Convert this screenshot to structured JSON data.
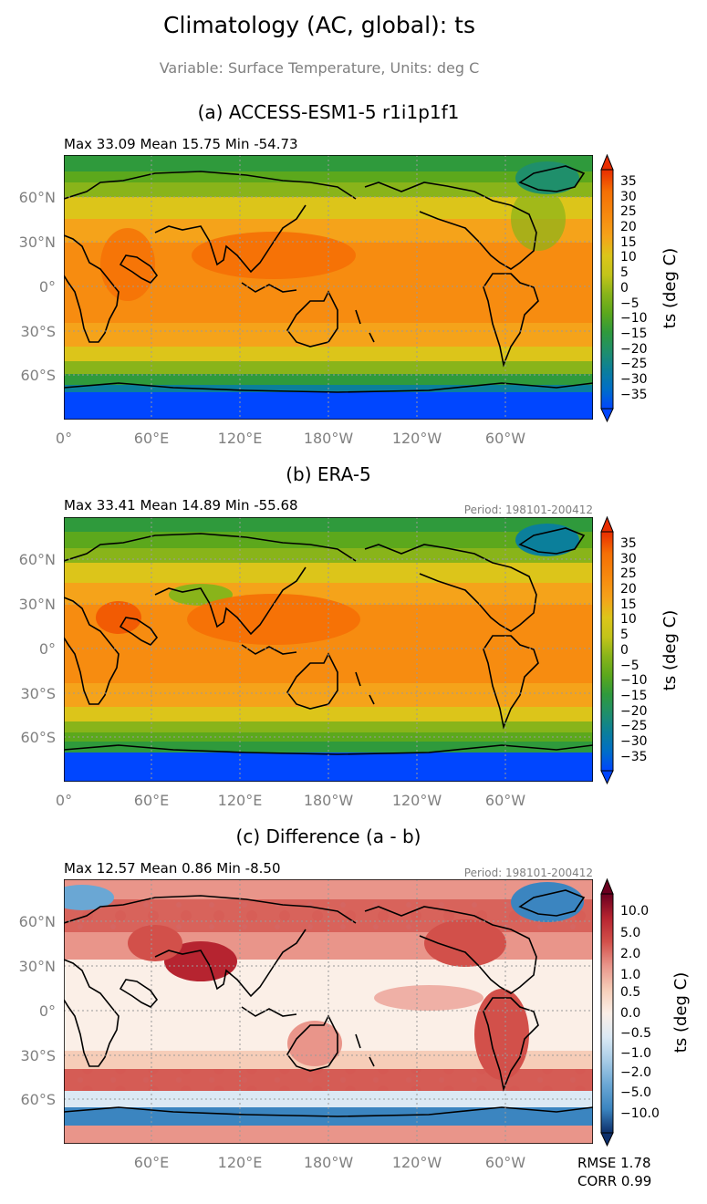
{
  "figure": {
    "title": "Climatology (AC, global): ts",
    "subtitle": "Variable: Surface Temperature, Units: deg C"
  },
  "colors": {
    "temperature_scale": [
      "#0046ff",
      "#0059e6",
      "#006ec8",
      "#0b7f9b",
      "#1f8f6b",
      "#2f9a3c",
      "#5ca81c",
      "#89b41a",
      "#b4c21a",
      "#dcc51a",
      "#f0b51a",
      "#f5a31a",
      "#f78c10",
      "#f56f05",
      "#f04f00",
      "#e82d00"
    ],
    "difference_scale": [
      "#0d2f6b",
      "#1f5fa8",
      "#3b85c0",
      "#6aa7d4",
      "#a6cbe6",
      "#dbe9f4",
      "#fbefe7",
      "#f6cdb8",
      "#e9958a",
      "#d2504a",
      "#b62430",
      "#6b0020"
    ],
    "coastline": "#000000",
    "gridline": "#9a9a9a",
    "tick_text": "#808080"
  },
  "chart_data": [
    {
      "type": "heatmap",
      "title": "(a) ACCESS-ESM1-5 r1i1p1f1",
      "stats": "Max 33.09 Mean 15.75 Min -54.73",
      "period": "",
      "x_ticks": [
        "0°",
        "60°E",
        "120°E",
        "180°W",
        "120°W",
        "60°W"
      ],
      "y_ticks": [
        "60°N",
        "30°N",
        "0°",
        "30°S",
        "60°S"
      ],
      "colorbar": {
        "label": "ts (deg C)",
        "ticks": [
          "35",
          "30",
          "25",
          "20",
          "15",
          "10",
          "5",
          "0",
          "−5",
          "−10",
          "−15",
          "−20",
          "−25",
          "−30",
          "−35"
        ]
      }
    },
    {
      "type": "heatmap",
      "title": "(b) ERA-5",
      "stats": "Max 33.41 Mean 14.89 Min -55.68",
      "period": "Period: 198101-200412",
      "x_ticks": [
        "0°",
        "60°E",
        "120°E",
        "180°W",
        "120°W",
        "60°W"
      ],
      "y_ticks": [
        "60°N",
        "30°N",
        "0°",
        "30°S",
        "60°S"
      ],
      "colorbar": {
        "label": "ts (deg C)",
        "ticks": [
          "35",
          "30",
          "25",
          "20",
          "15",
          "10",
          "5",
          "0",
          "−5",
          "−10",
          "−15",
          "−20",
          "−25",
          "−30",
          "−35"
        ]
      }
    },
    {
      "type": "heatmap",
      "title": "(c) Difference (a - b)",
      "stats": "Max 12.57 Mean 0.86 Min -8.50",
      "period": "Period: 198101-200412",
      "x_ticks": [
        "",
        "60°E",
        "120°E",
        "180°W",
        "120°W",
        "60°W"
      ],
      "y_ticks": [
        "60°N",
        "30°N",
        "0°",
        "30°S",
        "60°S"
      ],
      "colorbar": {
        "label": "ts (deg C)",
        "ticks": [
          "10.0",
          "5.0",
          "2.0",
          "1.0",
          "0.5",
          "0.0",
          "−0.5",
          "−1.0",
          "−2.0",
          "−5.0",
          "−10.0"
        ]
      },
      "metrics": {
        "rmse": "RMSE 1.78",
        "corr": "CORR 0.99"
      }
    }
  ]
}
